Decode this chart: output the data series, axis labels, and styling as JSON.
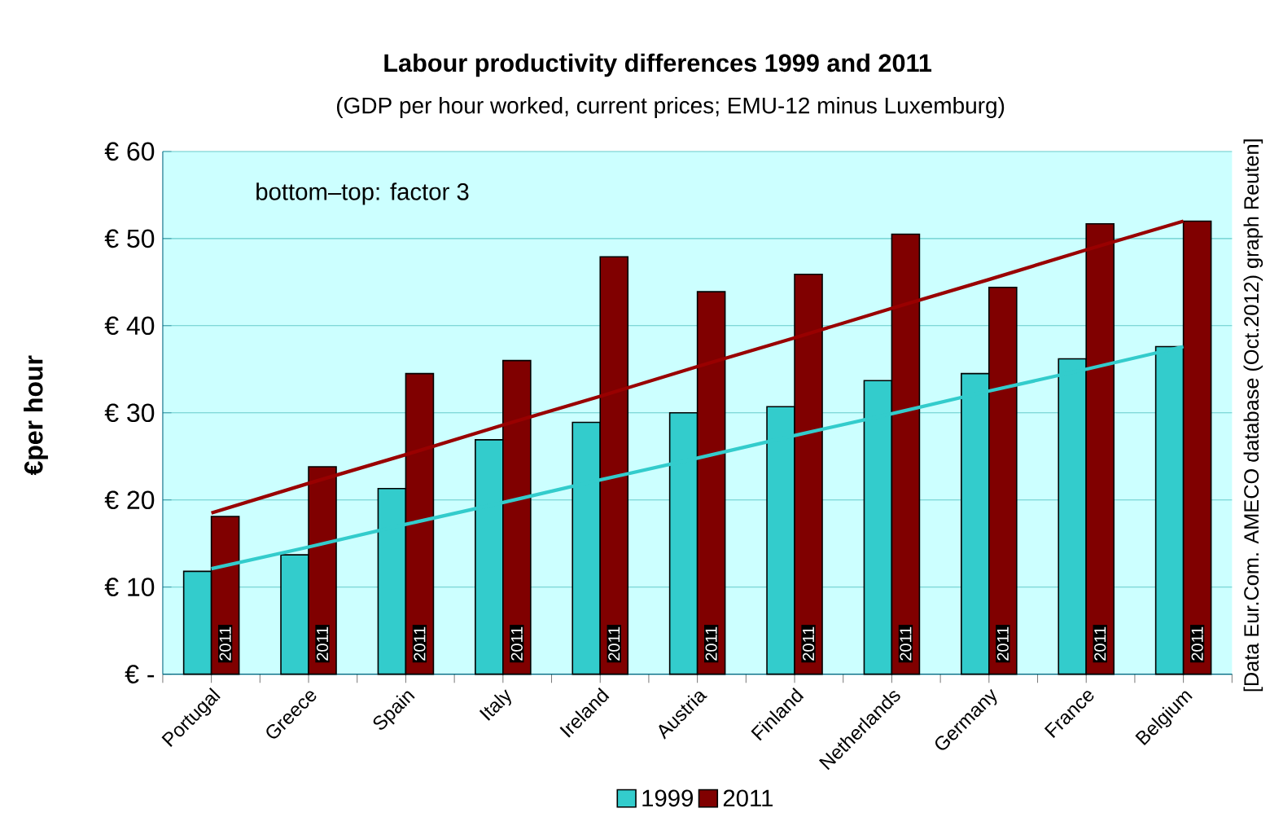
{
  "chart_data": {
    "type": "bar",
    "title": "Labour productivity differences 1999 and 2011",
    "subtitle": "(GDP per hour worked, current prices; EMU-12 minus Luxemburg)",
    "ylabel": "€per hour",
    "categories": [
      "Portugal",
      "Greece",
      "Spain",
      "Italy",
      "Ireland",
      "Austria",
      "Finland",
      "Netherlands",
      "Germany",
      "France",
      "Belgium"
    ],
    "series": [
      {
        "name": "1999",
        "color": "#33cccc",
        "values": [
          11.8,
          13.7,
          21.3,
          26.9,
          28.9,
          30.0,
          30.7,
          33.7,
          34.5,
          36.2,
          37.6
        ]
      },
      {
        "name": "2011",
        "color": "#800000",
        "values": [
          18.1,
          23.8,
          34.5,
          36.0,
          47.9,
          43.9,
          45.9,
          50.5,
          44.4,
          51.7,
          52.0
        ]
      },
      {
        "type": "line",
        "color": "#33cccc",
        "values": [
          12.1,
          14.6,
          17.2,
          19.7,
          22.3,
          24.8,
          27.4,
          29.9,
          32.5,
          35.0,
          37.6
        ]
      },
      {
        "type": "line",
        "color": "#990000",
        "values": [
          18.5,
          21.9,
          25.2,
          28.6,
          31.9,
          35.3,
          38.6,
          42.0,
          45.3,
          48.7,
          52.0
        ]
      }
    ],
    "ylim": [
      0,
      60
    ],
    "yticks": [
      {
        "value": 0,
        "label": "€ -"
      },
      {
        "value": 10,
        "label": "€ 10"
      },
      {
        "value": 20,
        "label": "€ 20"
      },
      {
        "value": 30,
        "label": "€ 30"
      },
      {
        "value": 40,
        "label": "€ 40"
      },
      {
        "value": 50,
        "label": "€ 50"
      },
      {
        "value": 60,
        "label": "€ 60"
      }
    ],
    "grid": "y",
    "legend": "bottom",
    "annotations": [
      "bottom–top: factor 3",
      "[Data Eur.Com. AMECO database (Oct.2012) graph Reuten]",
      {
        "text": "2011",
        "x": "Portugal",
        "y": 3.5
      },
      {
        "text": "2011",
        "x": "Greece",
        "y": 3.5
      },
      {
        "text": "2011",
        "x": "Spain",
        "y": 3.5
      },
      {
        "text": "2011",
        "x": "Italy",
        "y": 3.5
      },
      {
        "text": "2011",
        "x": "Ireland",
        "y": 3.5
      },
      {
        "text": "2011",
        "x": "Austria",
        "y": 3.5
      },
      {
        "text": "2011",
        "x": "Finland",
        "y": 3.5
      },
      {
        "text": "2011",
        "x": "Netherlands",
        "y": 3.5
      },
      {
        "text": "2011",
        "x": "Germany",
        "y": 3.5
      },
      {
        "text": "2011",
        "x": "France",
        "y": 3.5
      },
      {
        "text": "2011",
        "x": "Belgium",
        "y": 3.5
      }
    ]
  }
}
